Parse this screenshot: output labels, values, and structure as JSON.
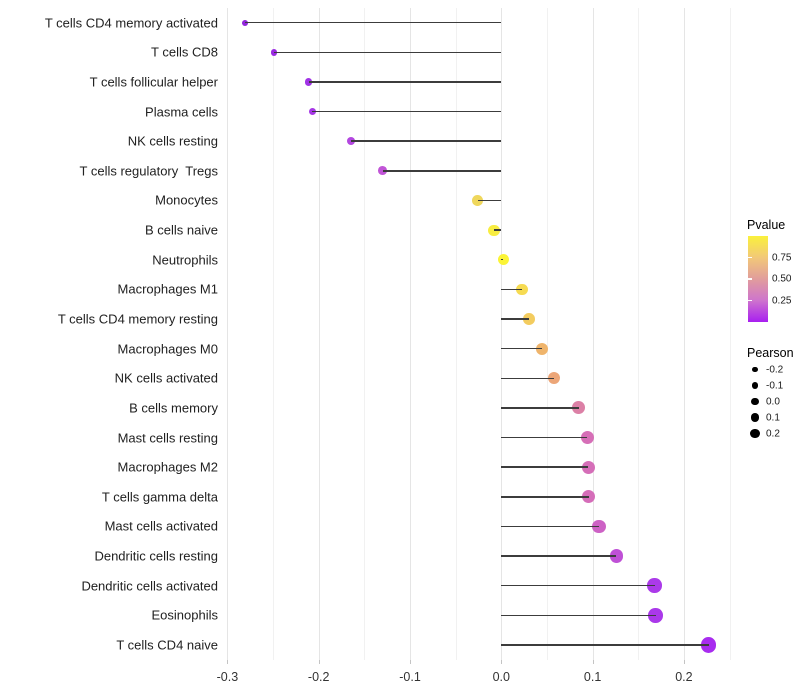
{
  "chart_data": {
    "type": "lollipop",
    "title": "",
    "xlabel": "",
    "ylabel": "",
    "encoding": {
      "x": "Pearson correlation",
      "color": "Pvalue",
      "size": "Pearson"
    },
    "x_axis": {
      "tick_values": [
        -0.3,
        -0.2,
        -0.1,
        0.0,
        0.1,
        0.2
      ],
      "tick_labels": [
        "-0.3",
        "-0.2",
        "-0.1",
        "0.0",
        "0.1",
        "0.2"
      ],
      "minor_step": 0.05,
      "range": [
        -0.307,
        0.252
      ],
      "grid": "vertical-only"
    },
    "points": [
      {
        "label": "T cells CD4 memory activated",
        "pearson": -0.281,
        "pvalue_color": "#9126DB"
      },
      {
        "label": "T cells CD8",
        "pearson": -0.249,
        "pvalue_color": "#9A2AE2"
      },
      {
        "label": "T cells follicular helper",
        "pearson": -0.211,
        "pvalue_color": "#A133E6"
      },
      {
        "label": "Plasma cells",
        "pearson": -0.207,
        "pvalue_color": "#A637E6"
      },
      {
        "label": "NK cells resting",
        "pearson": -0.165,
        "pvalue_color": "#B347E0"
      },
      {
        "label": "T cells regulatory  Tregs",
        "pearson": -0.13,
        "pvalue_color": "#C155D7"
      },
      {
        "label": "Monocytes",
        "pearson": -0.026,
        "pvalue_color": "#EFD75C"
      },
      {
        "label": "B cells naive",
        "pearson": -0.008,
        "pvalue_color": "#F8ED41"
      },
      {
        "label": "Neutrophils",
        "pearson": 0.002,
        "pvalue_color": "#FBF436"
      },
      {
        "label": "Macrophages M1",
        "pearson": 0.023,
        "pvalue_color": "#F6DB52"
      },
      {
        "label": "T cells CD4 memory resting",
        "pearson": 0.03,
        "pvalue_color": "#F3CC5F"
      },
      {
        "label": "Macrophages M0",
        "pearson": 0.045,
        "pvalue_color": "#EFB46B"
      },
      {
        "label": "NK cells activated",
        "pearson": 0.058,
        "pvalue_color": "#ECA678"
      },
      {
        "label": "B cells memory",
        "pearson": 0.085,
        "pvalue_color": "#DC80A6"
      },
      {
        "label": "Mast cells resting",
        "pearson": 0.094,
        "pvalue_color": "#D66FB7"
      },
      {
        "label": "Macrophages M2",
        "pearson": 0.095,
        "pvalue_color": "#D56EB8"
      },
      {
        "label": "T cells gamma delta",
        "pearson": 0.096,
        "pvalue_color": "#D56DB9"
      },
      {
        "label": "Mast cells activated",
        "pearson": 0.107,
        "pvalue_color": "#CD62C5"
      },
      {
        "label": "Dendritic cells resting",
        "pearson": 0.126,
        "pvalue_color": "#BF50D6"
      },
      {
        "label": "Dendritic cells activated",
        "pearson": 0.168,
        "pvalue_color": "#AB3AE9"
      },
      {
        "label": "Eosinophils",
        "pearson": 0.169,
        "pvalue_color": "#AA38EA"
      },
      {
        "label": "T cells CD4 naive",
        "pearson": 0.227,
        "pvalue_color": "#A82CEF"
      }
    ]
  },
  "legend": {
    "pvalue": {
      "title": "Pvalue",
      "tick_values": [
        0.75,
        0.5,
        0.25
      ],
      "tick_labels": [
        "0.75",
        "0.50",
        "0.25"
      ],
      "value_range": [
        0,
        1
      ],
      "gradient_stops_low_to_high": [
        "#A81FF0",
        "#CE74CD",
        "#E19D9C",
        "#F2C878",
        "#FAF13C"
      ]
    },
    "pearson": {
      "title": "Pearson",
      "entries": [
        {
          "label": "-0.2",
          "value": -0.2
        },
        {
          "label": "-0.1",
          "value": -0.1
        },
        {
          "label": "0.0",
          "value": 0.0
        },
        {
          "label": "0.1",
          "value": 0.1
        },
        {
          "label": "0.2",
          "value": 0.2
        }
      ],
      "dot_color": "#000000"
    }
  },
  "colors": {
    "background": "#FFFFFF",
    "segment": "#3C3C3C",
    "grid_major": "#E5E5E5",
    "grid_minor": "#F1F1F1",
    "axis_text": "#333333",
    "label_text": "#212121"
  }
}
